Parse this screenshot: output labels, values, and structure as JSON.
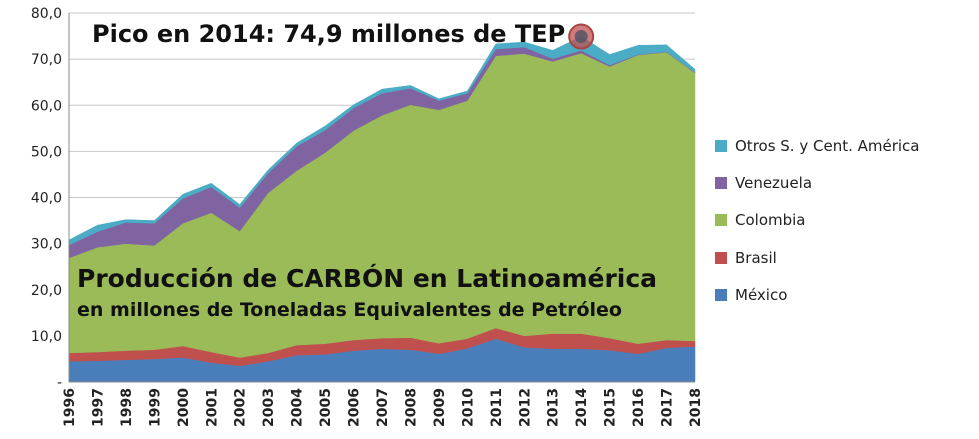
{
  "chart_data": {
    "type": "area",
    "stacked": true,
    "title": "Producción de CARBÓN en Latinoamérica",
    "subtitle": "en millones de Toneladas Equivalentes de Petróleo",
    "annotation": "Pico en 2014: 74,9 millones de TEP",
    "annotation_year": "2014",
    "annotation_value": 74.9,
    "xlabel": "",
    "ylabel": "",
    "ylim": [
      0,
      80
    ],
    "yticks": [
      "-",
      "10,0",
      "20,0",
      "30,0",
      "40,0",
      "50,0",
      "60,0",
      "70,0",
      "80,0"
    ],
    "grid": true,
    "legend_position": "right",
    "categories": [
      "1996",
      "1997",
      "1998",
      "1999",
      "2000",
      "2001",
      "2002",
      "2003",
      "2004",
      "2005",
      "2006",
      "2007",
      "2008",
      "2009",
      "2010",
      "2011",
      "2012",
      "2013",
      "2014",
      "2015",
      "2016",
      "2017",
      "2018"
    ],
    "series": [
      {
        "name": "México",
        "color": "#4a7ebb",
        "values": [
          4.5,
          4.6,
          4.8,
          5.0,
          5.3,
          4.2,
          3.5,
          4.5,
          5.8,
          6.0,
          6.8,
          7.2,
          7.0,
          6.1,
          7.3,
          9.4,
          7.5,
          7.2,
          7.2,
          6.9,
          6.1,
          7.4,
          7.7
        ]
      },
      {
        "name": "Brasil",
        "color": "#c0504d",
        "values": [
          1.8,
          1.9,
          2.0,
          2.0,
          2.5,
          2.3,
          1.8,
          1.8,
          2.2,
          2.3,
          2.3,
          2.3,
          2.6,
          2.3,
          2.1,
          2.3,
          2.5,
          3.3,
          3.3,
          2.6,
          2.2,
          1.7,
          1.2
        ]
      },
      {
        "name": "Colombia",
        "color": "#9bbb59",
        "values": [
          20.6,
          22.7,
          23.2,
          22.6,
          26.6,
          30.2,
          27.4,
          34.7,
          37.8,
          41.4,
          45.4,
          48.3,
          50.5,
          50.6,
          51.6,
          59.0,
          61.2,
          59.0,
          60.8,
          58.9,
          62.6,
          62.4,
          58.1
        ]
      },
      {
        "name": "Venezuela",
        "color": "#8064a2",
        "values": [
          2.8,
          3.4,
          4.6,
          4.8,
          5.4,
          5.6,
          5.1,
          4.3,
          5.3,
          4.9,
          4.9,
          4.8,
          3.6,
          2.0,
          1.6,
          1.5,
          1.4,
          0.6,
          0.6,
          0.3,
          0.1,
          0.1,
          0.1
        ]
      },
      {
        "name": "Otros S. y Cent. América",
        "color": "#4bacc6",
        "values": [
          1.1,
          1.4,
          0.6,
          0.6,
          0.9,
          0.8,
          0.7,
          0.7,
          0.7,
          0.9,
          0.7,
          0.9,
          0.6,
          0.4,
          0.5,
          1.1,
          1.1,
          1.8,
          3.0,
          2.3,
          2.0,
          1.5,
          0.7
        ]
      }
    ]
  }
}
